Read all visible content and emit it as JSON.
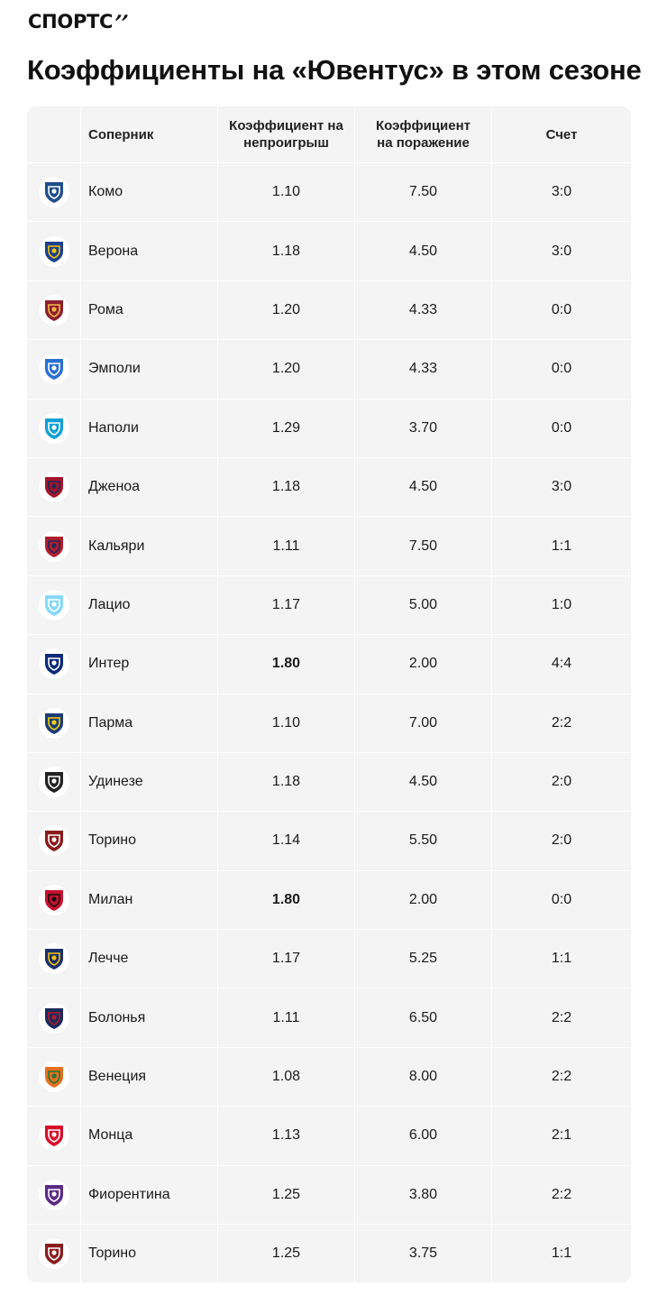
{
  "brand": {
    "name": "СПОРТС",
    "mark": "’’"
  },
  "title": "Коэффициенты на «Ювентус» в этом сезоне",
  "table": {
    "headers": {
      "opponent": "Соперник",
      "no_loss": "Коэффициент на непроигрыш",
      "loss": "Коэффициент на поражение",
      "score": "Счет"
    },
    "rows": [
      {
        "team": "Комо",
        "no_loss": "1.10",
        "loss": "7.50",
        "score": "3:0",
        "icon": "como-crest-icon",
        "color": "#1f4e8c",
        "accent": "#ffffff",
        "bold": false
      },
      {
        "team": "Верона",
        "no_loss": "1.18",
        "loss": "4.50",
        "score": "3:0",
        "icon": "verona-crest-icon",
        "color": "#1c3f8f",
        "accent": "#f2c500",
        "bold": false
      },
      {
        "team": "Рома",
        "no_loss": "1.20",
        "loss": "4.33",
        "score": "0:0",
        "icon": "roma-crest-icon",
        "color": "#8e1f2f",
        "accent": "#f0bc42",
        "bold": false
      },
      {
        "team": "Эмполи",
        "no_loss": "1.20",
        "loss": "4.33",
        "score": "0:0",
        "icon": "empoli-crest-icon",
        "color": "#2a6fd1",
        "accent": "#ffffff",
        "bold": false
      },
      {
        "team": "Наполи",
        "no_loss": "1.29",
        "loss": "3.70",
        "score": "0:0",
        "icon": "napoli-crest-icon",
        "color": "#12a0d7",
        "accent": "#ffffff",
        "bold": false
      },
      {
        "team": "Дженоа",
        "no_loss": "1.18",
        "loss": "4.50",
        "score": "3:0",
        "icon": "genoa-crest-icon",
        "color": "#a3152c",
        "accent": "#1a2a5a",
        "bold": false
      },
      {
        "team": "Кальяри",
        "no_loss": "1.11",
        "loss": "7.50",
        "score": "1:1",
        "icon": "cagliari-crest-icon",
        "color": "#b01d2e",
        "accent": "#1b2a5c",
        "bold": false
      },
      {
        "team": "Лацио",
        "no_loss": "1.17",
        "loss": "5.00",
        "score": "1:0",
        "icon": "lazio-crest-icon",
        "color": "#87d8f7",
        "accent": "#ffffff",
        "bold": false
      },
      {
        "team": "Интер",
        "no_loss": "1.80",
        "loss": "2.00",
        "score": "4:4",
        "icon": "inter-crest-icon",
        "color": "#0a2a7a",
        "accent": "#ffffff",
        "bold": true
      },
      {
        "team": "Парма",
        "no_loss": "1.10",
        "loss": "7.00",
        "score": "2:2",
        "icon": "parma-crest-icon",
        "color": "#1c3b7a",
        "accent": "#f4d000",
        "bold": false
      },
      {
        "team": "Удинезе",
        "no_loss": "1.18",
        "loss": "4.50",
        "score": "2:0",
        "icon": "udinese-crest-icon",
        "color": "#222222",
        "accent": "#ffffff",
        "bold": false
      },
      {
        "team": "Торино",
        "no_loss": "1.14",
        "loss": "5.50",
        "score": "2:0",
        "icon": "torino-crest-icon",
        "color": "#8a1c1c",
        "accent": "#ffffff",
        "bold": false
      },
      {
        "team": "Милан",
        "no_loss": "1.80",
        "loss": "2.00",
        "score": "0:0",
        "icon": "milan-crest-icon",
        "color": "#c8102e",
        "accent": "#111111",
        "bold": true
      },
      {
        "team": "Лечче",
        "no_loss": "1.17",
        "loss": "5.25",
        "score": "1:1",
        "icon": "lecce-crest-icon",
        "color": "#1b2f6b",
        "accent": "#f4c20d",
        "bold": false
      },
      {
        "team": "Болонья",
        "no_loss": "1.11",
        "loss": "6.50",
        "score": "2:2",
        "icon": "bologna-crest-icon",
        "color": "#1a2a5a",
        "accent": "#b01d2e",
        "bold": false
      },
      {
        "team": "Венеция",
        "no_loss": "1.08",
        "loss": "8.00",
        "score": "2:2",
        "icon": "venezia-crest-icon",
        "color": "#e76f1e",
        "accent": "#1e7a3a",
        "bold": false
      },
      {
        "team": "Монца",
        "no_loss": "1.13",
        "loss": "6.00",
        "score": "2:1",
        "icon": "monza-crest-icon",
        "color": "#d7102a",
        "accent": "#ffffff",
        "bold": false
      },
      {
        "team": "Фиорентина",
        "no_loss": "1.25",
        "loss": "3.80",
        "score": "2:2",
        "icon": "fiorentina-crest-icon",
        "color": "#5b2a86",
        "accent": "#ffffff",
        "bold": false
      },
      {
        "team": "Торино",
        "no_loss": "1.25",
        "loss": "3.75",
        "score": "1:1",
        "icon": "torino-crest-icon",
        "color": "#8a1c1c",
        "accent": "#ffffff",
        "bold": false
      }
    ]
  }
}
